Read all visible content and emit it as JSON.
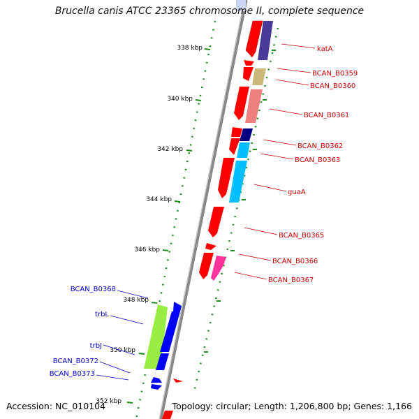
{
  "title": "Brucella canis ATCC 23365 chromosome II, complete sequence",
  "footer": {
    "accession": "Accession: NC_010104",
    "summary": "Topology: circular; Length: 1,206,800 bp; Genes: 1,166"
  },
  "scale_ticks": [
    "338 kbp",
    "340 kbp",
    "342 kbp",
    "344 kbp",
    "346 kbp",
    "348 kbp",
    "350 kbp",
    "352 kbp"
  ],
  "forward_genes": [
    "katA",
    "BCAN_B0359",
    "BCAN_B0360",
    "BCAN_B0361",
    "BCAN_B0362",
    "BCAN_B0363",
    "guaA",
    "BCAN_B0365",
    "BCAN_B0366",
    "BCAN_B0367"
  ],
  "reverse_genes": [
    "BCAN_B0368",
    "trbL",
    "trbJ",
    "BCAN_B0372",
    "BCAN_B0373"
  ],
  "colors": {
    "forward_label": "#cc0000",
    "reverse_label": "#0000cc",
    "cds": "#ff0000",
    "reverse_cds": "#0000ff",
    "scale": "#1a8c1a",
    "backbone": "#888888"
  }
}
